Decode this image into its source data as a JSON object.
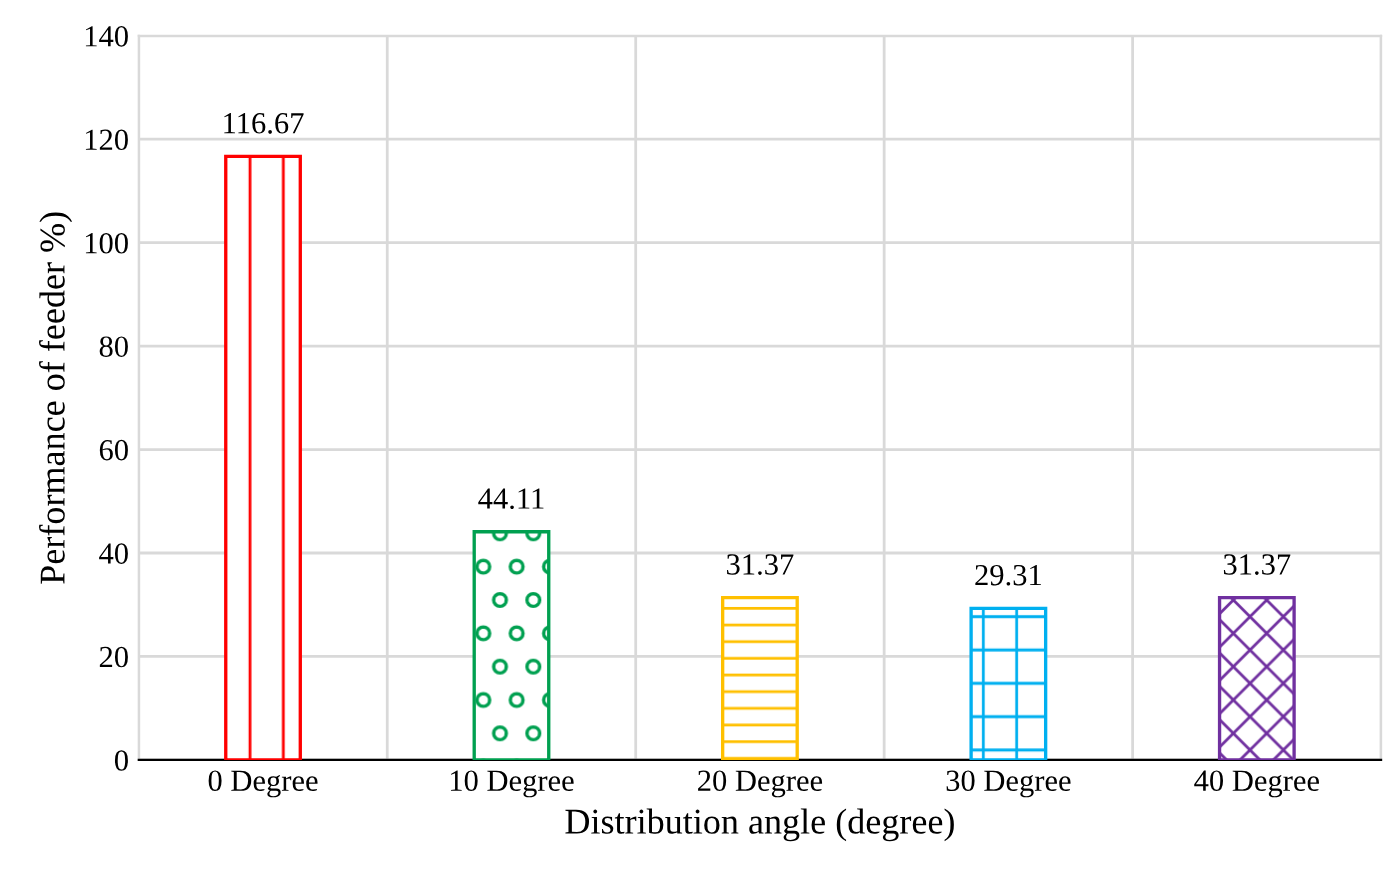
{
  "chart_data": {
    "type": "bar",
    "xlabel": "Distribution angle (degree)",
    "ylabel": "Performance of feeder %)",
    "categories": [
      "0 Degree",
      "10 Degree",
      "20 Degree",
      "30 Degree",
      "40 Degree"
    ],
    "values": [
      116.67,
      44.11,
      31.37,
      29.31,
      31.37
    ],
    "colors": [
      "#ff0000",
      "#00a050",
      "#ffc000",
      "#00b0f0",
      "#7030a0"
    ],
    "ylim": [
      0,
      140
    ],
    "yticks": [
      0,
      20,
      40,
      60,
      80,
      100,
      120,
      140
    ],
    "grid": true,
    "data_labels": true
  }
}
